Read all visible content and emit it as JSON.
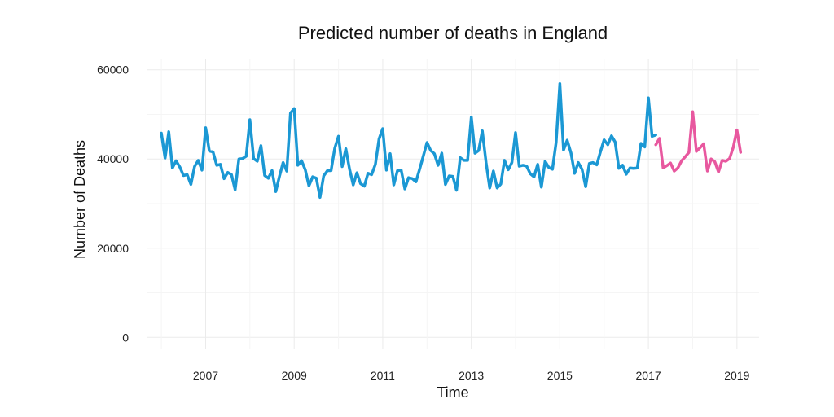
{
  "chart_data": {
    "type": "line",
    "title": "Predicted number of deaths in England",
    "xlabel": "Time",
    "ylabel": "Number of Deaths",
    "x_ticks": [
      "2007",
      "2009",
      "2011",
      "2013",
      "2015",
      "2017",
      "2019"
    ],
    "y_ticks": [
      "0",
      "20000",
      "40000",
      "60000"
    ],
    "xlim": [
      "2005-09",
      "2019-07"
    ],
    "ylim": [
      -2500,
      62500
    ],
    "grid": true,
    "legend": "none",
    "series": [
      {
        "color": "#1b98d4",
        "x": [
          "2006-01",
          "2006-02",
          "2006-03",
          "2006-04",
          "2006-05",
          "2006-06",
          "2006-07",
          "2006-08",
          "2006-09",
          "2006-10",
          "2006-11",
          "2006-12",
          "2007-01",
          "2007-02",
          "2007-03",
          "2007-04",
          "2007-05",
          "2007-06",
          "2007-07",
          "2007-08",
          "2007-09",
          "2007-10",
          "2007-11",
          "2007-12",
          "2008-01",
          "2008-02",
          "2008-03",
          "2008-04",
          "2008-05",
          "2008-06",
          "2008-07",
          "2008-08",
          "2008-09",
          "2008-10",
          "2008-11",
          "2008-12",
          "2009-01",
          "2009-02",
          "2009-03",
          "2009-04",
          "2009-05",
          "2009-06",
          "2009-07",
          "2009-08",
          "2009-09",
          "2009-10",
          "2009-11",
          "2009-12",
          "2010-01",
          "2010-02",
          "2010-03",
          "2010-04",
          "2010-05",
          "2010-06",
          "2010-07",
          "2010-08",
          "2010-09",
          "2010-10",
          "2010-11",
          "2010-12",
          "2011-01",
          "2011-02",
          "2011-03",
          "2011-04",
          "2011-05",
          "2011-06",
          "2011-07",
          "2011-08",
          "2011-09",
          "2011-10",
          "2011-11",
          "2011-12",
          "2012-01",
          "2012-02",
          "2012-03",
          "2012-04",
          "2012-05",
          "2012-06",
          "2012-07",
          "2012-08",
          "2012-09",
          "2012-10",
          "2012-11",
          "2012-12",
          "2013-01",
          "2013-02",
          "2013-03",
          "2013-04",
          "2013-05",
          "2013-06",
          "2013-07",
          "2013-08",
          "2013-09",
          "2013-10",
          "2013-11",
          "2013-12",
          "2014-01",
          "2014-02",
          "2014-03",
          "2014-04",
          "2014-05",
          "2014-06",
          "2014-07",
          "2014-08",
          "2014-09",
          "2014-10",
          "2014-11",
          "2014-12",
          "2015-01",
          "2015-02",
          "2015-03",
          "2015-04",
          "2015-05",
          "2015-06",
          "2015-07",
          "2015-08",
          "2015-09",
          "2015-10",
          "2015-11",
          "2015-12",
          "2016-01",
          "2016-02",
          "2016-03",
          "2016-04",
          "2016-05",
          "2016-06",
          "2016-07",
          "2016-08",
          "2016-09",
          "2016-10",
          "2016-11",
          "2016-12",
          "2017-01",
          "2017-02",
          "2017-03"
        ],
        "values": [
          45800,
          40200,
          46100,
          38000,
          39600,
          38200,
          36300,
          36500,
          34300,
          38300,
          39700,
          37500,
          47000,
          41800,
          41600,
          38600,
          38800,
          35600,
          37000,
          36500,
          33100,
          40000,
          40100,
          40600,
          48800,
          40100,
          39500,
          43000,
          36300,
          35700,
          37400,
          32700,
          36100,
          39200,
          37300,
          50300,
          51300,
          38600,
          39600,
          37600,
          34000,
          36000,
          35700,
          31400,
          36200,
          37400,
          37400,
          42400,
          45100,
          38300,
          42300,
          37700,
          34200,
          36900,
          34500,
          33900,
          36800,
          36500,
          38800,
          44500,
          46800,
          37500,
          41200,
          34200,
          37400,
          37500,
          33300,
          35800,
          35600,
          34900,
          37700,
          40700,
          43700,
          41900,
          41200,
          38600,
          41300,
          34300,
          36200,
          36100,
          33000,
          40300,
          39700,
          39700,
          49400,
          41300,
          41900,
          46300,
          39200,
          33500,
          37300,
          33500,
          34400,
          39700,
          37600,
          39200,
          45900,
          38400,
          38600,
          38400,
          36700,
          36000,
          38800,
          33700,
          39500,
          38100,
          37700,
          43700,
          56900,
          42000,
          44200,
          41400,
          36800,
          39200,
          37700,
          33800,
          39000,
          39200,
          38700,
          41600,
          44300,
          43200,
          45200,
          43800,
          37900,
          38600,
          36600,
          38000,
          37900,
          38000,
          43500,
          42700,
          53700,
          45100,
          45400
        ]
      },
      {
        "color": "#e8589f",
        "x": [
          "2017-03",
          "2017-04",
          "2017-05",
          "2017-06",
          "2017-07",
          "2017-08",
          "2017-09",
          "2017-10",
          "2017-11",
          "2017-12",
          "2018-01",
          "2018-02",
          "2018-03",
          "2018-04",
          "2018-05",
          "2018-06",
          "2018-07",
          "2018-08",
          "2018-09",
          "2018-10",
          "2018-11",
          "2018-12",
          "2019-01",
          "2019-02"
        ],
        "values": [
          43200,
          44600,
          38000,
          38500,
          39100,
          37300,
          38000,
          39600,
          40500,
          41500,
          50600,
          41700,
          42500,
          43400,
          37300,
          40000,
          39400,
          37100,
          39700,
          39500,
          40100,
          42600,
          46500,
          41500
        ]
      }
    ]
  }
}
